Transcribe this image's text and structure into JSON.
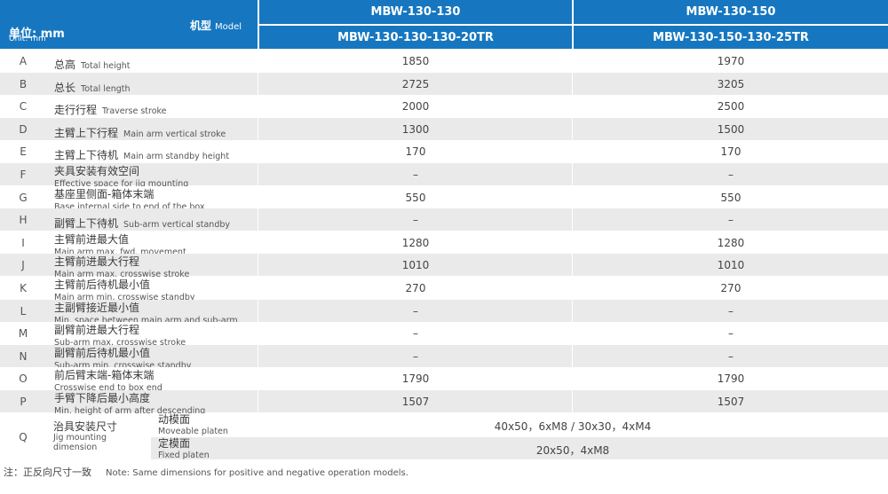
{
  "header": {
    "unit_cn": "单位: mm",
    "unit_en": "Unit: mm",
    "model_cn": "机型",
    "model_en": "Model",
    "col1_top": "MBW-130-130",
    "col1_bottom": "MBW-130-130-130-20TR",
    "col2_top": "MBW-130-150",
    "col2_bottom": "MBW-130-150-130-25TR"
  },
  "rows": [
    {
      "letter": "A",
      "cn": "总高",
      "en": "Total height",
      "v1": "1850",
      "v2": "1970"
    },
    {
      "letter": "B",
      "cn": "总长",
      "en": "Total length",
      "v1": "2725",
      "v2": "3205"
    },
    {
      "letter": "C",
      "cn": "走行行程",
      "en": "Traverse stroke",
      "v1": "2000",
      "v2": "2500"
    },
    {
      "letter": "D",
      "cn": "主臂上下行程",
      "en": "Main arm vertical stroke",
      "v1": "1300",
      "v2": "1500"
    },
    {
      "letter": "E",
      "cn": "主臂上下待机",
      "en": "Main arm standby height",
      "v1": "170",
      "v2": "170"
    },
    {
      "letter": "F",
      "cn": "夹具安装有效空间",
      "en": "Effective space for jig mounting",
      "v1": "–",
      "v2": "–"
    },
    {
      "letter": "G",
      "cn": "基座里侧面-箱体末端",
      "en": "Base internal side to end of the box",
      "v1": "550",
      "v2": "550"
    },
    {
      "letter": "H",
      "cn": "副臂上下待机",
      "en": "Sub-arm vertical standby",
      "v1": "–",
      "v2": "–"
    },
    {
      "letter": "I",
      "cn": "主臂前进最大值",
      "en": "Main arm max. fwd. movement",
      "v1": "1280",
      "v2": "1280"
    },
    {
      "letter": "J",
      "cn": "主臂前进最大行程",
      "en": "Main arm max. crosswise stroke",
      "v1": "1010",
      "v2": "1010"
    },
    {
      "letter": "K",
      "cn": "主臂前后待机最小值",
      "en": "Main arm min. crosswise standby",
      "v1": "270",
      "v2": "270"
    },
    {
      "letter": "L",
      "cn": "主副臂接近最小值",
      "en": "Min. space between main arm and sub-arm",
      "v1": "–",
      "v2": "–"
    },
    {
      "letter": "M",
      "cn": "副臂前进最大行程",
      "en": "Sub-arm max. crosswise stroke",
      "v1": "–",
      "v2": "–"
    },
    {
      "letter": "N",
      "cn": "副臂前后待机最小值",
      "en": "Sub-arm min. crosswise standby",
      "v1": "–",
      "v2": "–"
    },
    {
      "letter": "O",
      "cn": "前后臂末端-箱体末端",
      "en": "Crosswise end to box end",
      "v1": "1790",
      "v2": "1790"
    },
    {
      "letter": "P",
      "cn": "手臂下降后最小高度",
      "en": "Min. height of arm after descending",
      "v1": "1507",
      "v2": "1507"
    }
  ],
  "jig": {
    "letter": "Q",
    "cn": "治具安装尺寸",
    "en": "Jig mounting dimension",
    "moveable_cn": "动模面",
    "moveable_en": "Moveable platen",
    "moveable_value": "40x50，6xM8 / 30x30，4xM4",
    "fixed_cn": "定模面",
    "fixed_en": "Fixed platen",
    "fixed_value": "20x50，4xM8"
  },
  "note": {
    "cn": "注：正反向尺寸一致",
    "en": "Note: Same dimensions for positive and negative operation models."
  },
  "colors": {
    "header_blue": "#1677c0",
    "row_alt": "#eaeaea"
  }
}
